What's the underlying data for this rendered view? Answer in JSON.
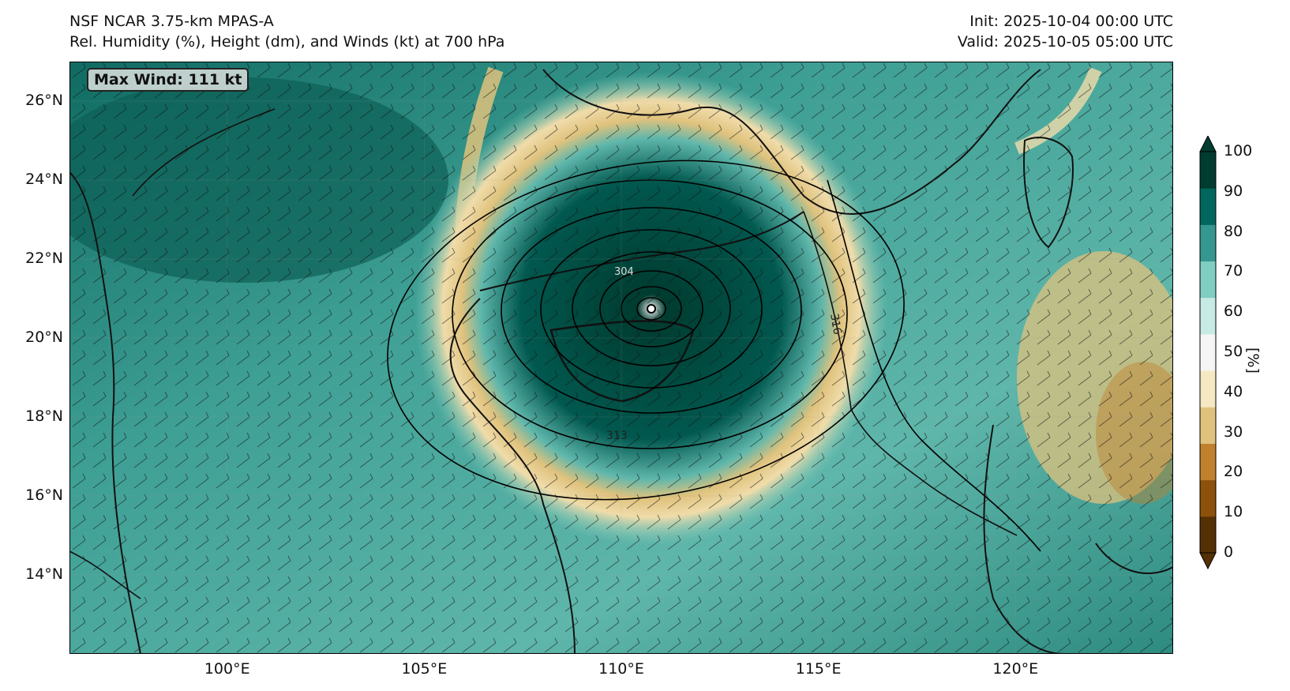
{
  "header": {
    "model": "NSF NCAR 3.75-km MPAS-A",
    "fields": "Rel. Humidity (%), Height (dm), and Winds (kt) at 700 hPa",
    "init": "Init: 2025-10-04 00:00 UTC",
    "valid": "Valid: 2025-10-05 05:00 UTC"
  },
  "annotation": {
    "max_wind": "Max Wind: 111 kt"
  },
  "map": {
    "lon_range": [
      96,
      124
    ],
    "lat_range": [
      12,
      27
    ],
    "lat_labels": [
      "26°N",
      "24°N",
      "22°N",
      "20°N",
      "18°N",
      "16°N",
      "14°N"
    ],
    "lat_values": [
      26,
      24,
      22,
      20,
      18,
      16,
      14
    ],
    "lon_labels": [
      "100°E",
      "105°E",
      "110°E",
      "115°E",
      "120°E"
    ],
    "lon_values": [
      100,
      105,
      110,
      115,
      120
    ],
    "contour_labels": [
      "313",
      "316",
      "304"
    ],
    "storm_center": {
      "lon": 110.6,
      "lat": 20.6
    }
  },
  "colorbar": {
    "unit": "[%]",
    "ticks": [
      "100",
      "90",
      "80",
      "70",
      "60",
      "50",
      "40",
      "30",
      "20",
      "10",
      "0"
    ],
    "tick_values": [
      100,
      90,
      80,
      70,
      60,
      50,
      40,
      30,
      20,
      10,
      0
    ],
    "colors": [
      "#543005",
      "#8c510a",
      "#bf812d",
      "#dfc27d",
      "#f6e8c3",
      "#f5f5f5",
      "#c7eae5",
      "#80cdc1",
      "#35978f",
      "#01665e",
      "#003c30"
    ]
  }
}
